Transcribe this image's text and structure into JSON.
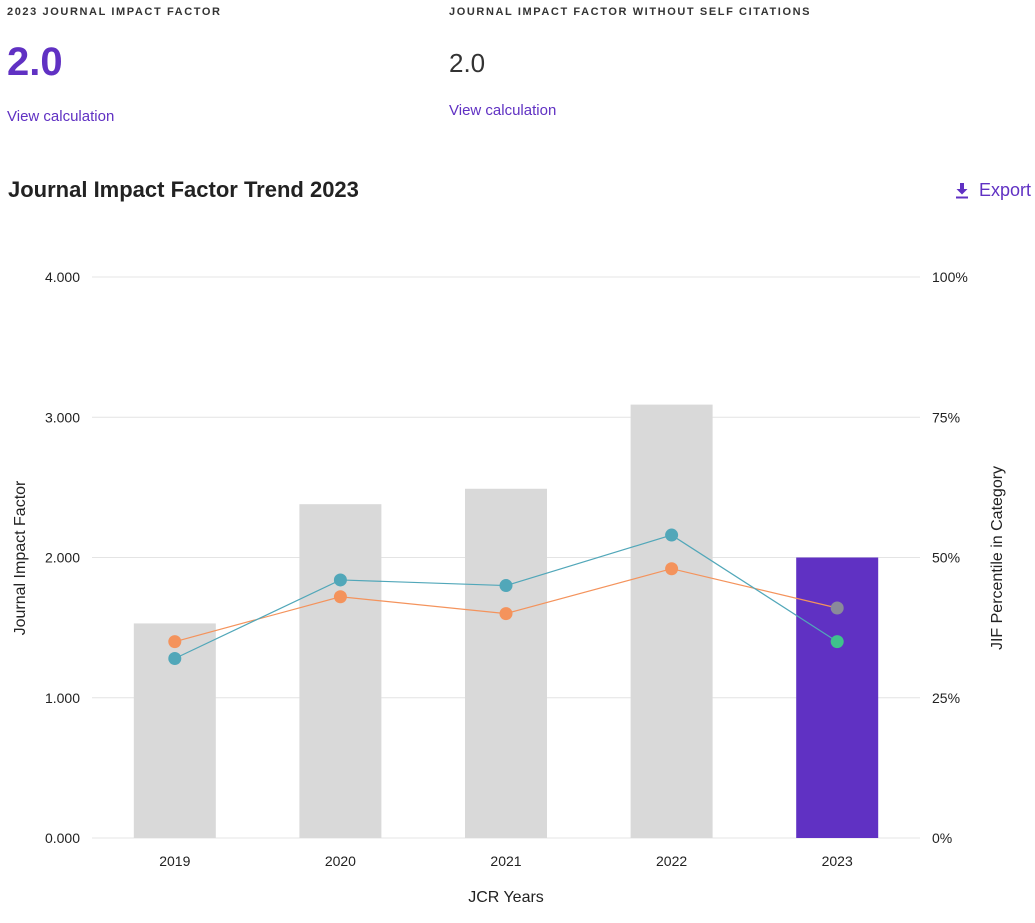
{
  "colors": {
    "accent": "#6031c3",
    "bar_default": "#d9d9d9",
    "bar_highlight": "#6031c3",
    "line_teal": "#51a7b9",
    "line_orange": "#f4935c",
    "point_gray": "#8a8a9a",
    "point_green": "#3fc28c",
    "grid": "#e4e4e4"
  },
  "metrics": [
    {
      "label": "2023 JOURNAL IMPACT FACTOR",
      "value": "2.0",
      "link": "View calculation"
    },
    {
      "label": "JOURNAL IMPACT FACTOR WITHOUT SELF CITATIONS",
      "value": "2.0",
      "link": "View calculation"
    }
  ],
  "section": {
    "title": "Journal Impact Factor Trend 2023",
    "export_label": "Export",
    "export_icon": "download-icon"
  },
  "chart_data": {
    "type": "bar",
    "title": "Journal Impact Factor Trend 2023",
    "xlabel": "JCR Years",
    "ylabel": "Journal Impact Factor",
    "y2label": "JIF Percentile in Category",
    "categories": [
      "2019",
      "2020",
      "2021",
      "2022",
      "2023"
    ],
    "ylim": [
      0,
      4
    ],
    "y2lim": [
      0,
      100
    ],
    "yticks": [
      "0.000",
      "1.000",
      "2.000",
      "3.000",
      "4.000"
    ],
    "y2ticks": [
      "0%",
      "25%",
      "50%",
      "75%",
      "100%"
    ],
    "grid": true,
    "series": [
      {
        "name": "Journal Impact Factor",
        "type": "bar",
        "axis": "left",
        "values": [
          1.53,
          2.38,
          2.49,
          3.09,
          2.0
        ],
        "highlight_index": 4
      },
      {
        "name": "JIF Percentile (teal)",
        "type": "line",
        "axis": "right",
        "values": [
          32,
          46,
          45,
          54,
          35
        ]
      },
      {
        "name": "JIF Percentile (orange)",
        "type": "line",
        "axis": "right",
        "values": [
          35,
          43,
          40,
          48,
          41
        ]
      }
    ]
  }
}
